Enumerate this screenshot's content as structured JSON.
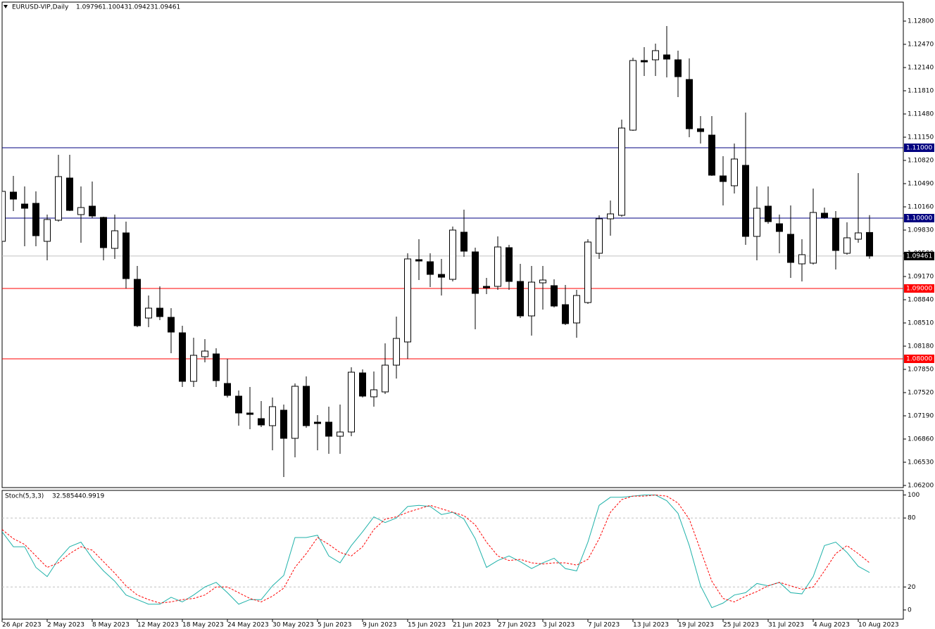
{
  "chart_data": [
    {
      "type": "candlestick",
      "title": "EURUSD-VIP,Daily",
      "categories": [
        "26 Apr 2023",
        null,
        null,
        null,
        "2 May 2023",
        null,
        null,
        null,
        "8 May 2023",
        null,
        null,
        null,
        "12 May 2023",
        null,
        null,
        null,
        "18 May 2023",
        null,
        null,
        null,
        "24 May 2023",
        null,
        null,
        null,
        "30 May 2023",
        null,
        null,
        null,
        "5 Jun 2023",
        null,
        null,
        null,
        "9 Jun 2023",
        null,
        null,
        null,
        "15 Jun 2023",
        null,
        null,
        null,
        "21 Jun 2023",
        null,
        null,
        null,
        "27 Jun 2023",
        null,
        null,
        null,
        "3 Jul 2023",
        null,
        null,
        null,
        "7 Jul 2023",
        null,
        null,
        null,
        "13 Jul 2023",
        null,
        null,
        null,
        "19 Jul 2023",
        null,
        null,
        null,
        "25 Jul 2023",
        null,
        null,
        null,
        "31 Jul 2023",
        null,
        null,
        null,
        "4 Aug 2023",
        null,
        null,
        null,
        "10 Aug 2023",
        null
      ],
      "open": [
        1.0967,
        1.1037,
        1.102,
        1.1021,
        1.0967,
        1.0997,
        1.1057,
        1.1005,
        1.1017,
        1.1001,
        1.0957,
        1.0979,
        1.0913,
        1.0858,
        1.0872,
        1.0859,
        1.0837,
        1.0768,
        1.0803,
        1.0807,
        1.0765,
        1.0747,
        1.0723,
        1.0715,
        1.0705,
        1.0727,
        1.0687,
        1.0761,
        1.071,
        1.071,
        1.069,
        1.0696,
        1.078,
        1.0746,
        1.0753,
        1.0791,
        1.0824,
        1.0941,
        1.0938,
        1.092,
        1.0913,
        1.098,
        1.0952,
        1.0903,
        1.0903,
        1.0958,
        1.091,
        1.0861,
        1.0908,
        1.0904,
        1.0877,
        1.0851,
        1.088,
        1.095,
        1.0999,
        1.1004,
        1.1125,
        1.1224,
        1.1225,
        1.1232,
        1.1225,
        1.1197,
        1.1127,
        1.1118,
        1.106,
        1.1046,
        1.1075,
        1.0974,
        1.1017,
        1.0992,
        1.0977,
        1.0935,
        1.0936,
        1.1007,
        1.1,
        1.095,
        1.097,
        1.09796
      ],
      "high": [
        1.1093,
        1.106,
        1.1045,
        1.1038,
        1.1005,
        1.109,
        1.109,
        1.1045,
        1.1052,
        1.1002,
        1.1005,
        1.0995,
        1.0932,
        1.089,
        1.0903,
        1.0872,
        1.0847,
        1.083,
        1.0828,
        1.0815,
        1.08,
        1.0755,
        1.076,
        1.074,
        1.0745,
        1.0735,
        1.0765,
        1.0775,
        1.072,
        1.0732,
        1.0735,
        1.0788,
        1.0785,
        1.0782,
        1.0822,
        1.086,
        1.095,
        1.097,
        1.095,
        1.0942,
        1.0988,
        1.1012,
        1.0958,
        1.0915,
        1.0974,
        1.0962,
        1.0935,
        1.0932,
        1.0932,
        1.0913,
        1.0905,
        1.0898,
        1.097,
        1.1004,
        1.1025,
        1.114,
        1.1228,
        1.1243,
        1.1248,
        1.1273,
        1.1238,
        1.1227,
        1.1145,
        1.1145,
        1.1088,
        1.1106,
        1.115,
        1.1045,
        1.1045,
        1.1005,
        1.1018,
        1.097,
        1.1042,
        1.1015,
        1.101,
        1.0994,
        1.1064,
        1.10043
      ],
      "low": [
        1.096,
        1.101,
        1.096,
        1.096,
        1.094,
        1.0995,
        1.101,
        1.0965,
        1.1,
        1.094,
        1.0942,
        1.09,
        1.0845,
        1.0845,
        1.0855,
        1.0808,
        1.076,
        1.076,
        1.0795,
        1.076,
        1.0745,
        1.0705,
        1.07,
        1.0703,
        1.067,
        1.0632,
        1.066,
        1.0702,
        1.067,
        1.0665,
        1.0665,
        1.069,
        1.0745,
        1.0732,
        1.075,
        1.0772,
        1.08,
        1.0912,
        1.0902,
        1.089,
        1.091,
        1.0945,
        1.0842,
        1.0892,
        1.0898,
        1.0898,
        1.0858,
        1.0833,
        1.087,
        1.0873,
        1.0848,
        1.083,
        1.0878,
        1.0942,
        1.0975,
        1.1002,
        1.1124,
        1.1202,
        1.1202,
        1.12,
        1.1172,
        1.1115,
        1.1106,
        1.106,
        1.1018,
        1.1035,
        1.0962,
        1.094,
        1.0992,
        1.095,
        1.0915,
        1.091,
        1.0934,
        1.0999,
        1.0927,
        1.0948,
        1.0965,
        1.09423
      ],
      "close": [
        1.1038,
        1.1027,
        1.1014,
        1.0975,
        1.0998,
        1.1059,
        1.1011,
        1.1015,
        1.1003,
        1.0958,
        1.0982,
        1.0914,
        1.0847,
        1.0872,
        1.086,
        1.0838,
        1.0768,
        1.0805,
        1.0811,
        1.0769,
        1.0748,
        1.0723,
        1.0721,
        1.0706,
        1.0732,
        1.0687,
        1.0761,
        1.0705,
        1.0708,
        1.069,
        1.0696,
        1.0781,
        1.0747,
        1.0756,
        1.0791,
        1.0829,
        1.0942,
        1.0939,
        1.092,
        1.0916,
        1.0983,
        1.0953,
        1.0893,
        1.0901,
        1.0959,
        1.091,
        1.0861,
        1.0909,
        1.0912,
        1.0875,
        1.085,
        1.089,
        1.0966,
        1.0999,
        1.1006,
        1.1128,
        1.1224,
        1.1222,
        1.1238,
        1.1226,
        1.1201,
        1.1127,
        1.1123,
        1.1061,
        1.1052,
        1.1084,
        1.0974,
        1.1014,
        1.0995,
        1.0981,
        1.0937,
        1.0948,
        1.1008,
        1.1001,
        1.0954,
        1.0972,
        1.0979,
        1.09461
      ],
      "up_color": "#ffffff",
      "down_color": "#000000",
      "ylim": [
        1.0617,
        1.1307
      ],
      "yticks": [
        {
          "value": 1.128,
          "label": "1.12800"
        },
        {
          "value": 1.1247,
          "label": "1.12470"
        },
        {
          "value": 1.1214,
          "label": "1.12140"
        },
        {
          "value": 1.1181,
          "label": "1.11810"
        },
        {
          "value": 1.1148,
          "label": "1.11480"
        },
        {
          "value": 1.1115,
          "label": "1.11150"
        },
        {
          "value": 1.1082,
          "label": "1.10820"
        },
        {
          "value": 1.1049,
          "label": "1.10490"
        },
        {
          "value": 1.1016,
          "label": "1.10160"
        },
        {
          "value": 1.0983,
          "label": "1.09830"
        },
        {
          "value": 1.095,
          "label": "1.09500"
        },
        {
          "value": 1.0917,
          "label": "1.09170"
        },
        {
          "value": 1.0884,
          "label": "1.08840"
        },
        {
          "value": 1.0851,
          "label": "1.08510"
        },
        {
          "value": 1.0818,
          "label": "1.08180"
        },
        {
          "value": 1.0785,
          "label": "1.07850"
        },
        {
          "value": 1.0752,
          "label": "1.07520"
        },
        {
          "value": 1.0719,
          "label": "1.07190"
        },
        {
          "value": 1.0686,
          "label": "1.06860"
        },
        {
          "value": 1.0653,
          "label": "1.06530"
        },
        {
          "value": 1.062,
          "label": "1.06200"
        }
      ],
      "levels": [
        {
          "value": 1.11,
          "label": "1.11000",
          "color": "#000080"
        },
        {
          "value": 1.1,
          "label": "1.10000",
          "color": "#000080"
        },
        {
          "value": 1.09,
          "label": "1.09000",
          "color": "#ff0000"
        },
        {
          "value": 1.08,
          "label": "1.08000",
          "color": "#ff0000"
        }
      ],
      "price_line_color": "#c0c0c0"
    },
    {
      "type": "line",
      "title": "Stoch(5,3,3)",
      "series": [
        {
          "color": "#20b2aa",
          "dashed": false,
          "values": [
            68,
            55,
            55,
            37,
            29,
            44,
            55,
            59,
            45,
            34,
            25,
            13,
            9,
            5,
            5,
            11,
            7,
            13,
            20,
            24,
            15,
            5,
            9,
            9,
            21,
            30,
            63,
            63,
            65,
            47,
            41,
            56,
            68,
            81,
            76,
            80,
            90,
            91,
            90,
            83,
            85,
            79,
            62,
            37,
            43,
            47,
            42,
            36,
            41,
            45,
            36,
            34,
            59,
            91,
            98,
            98,
            99,
            100,
            100,
            95,
            84,
            56,
            21,
            2,
            6,
            13,
            15,
            23,
            21,
            24,
            15,
            14,
            29,
            56,
            59,
            50,
            38,
            32.5854
          ]
        },
        {
          "color": "#ff0000",
          "dashed": true,
          "values": [
            70,
            62,
            57,
            47,
            37,
            41,
            49,
            55,
            52,
            42,
            32,
            21,
            13,
            9,
            6,
            7,
            9,
            10,
            13,
            20,
            20,
            15,
            10,
            7,
            12,
            19,
            37,
            49,
            63,
            57,
            50,
            47,
            55,
            70,
            79,
            81,
            85,
            88,
            91,
            88,
            85,
            82,
            74,
            59,
            47,
            43,
            44,
            41,
            40,
            41,
            41,
            39,
            44,
            62,
            85,
            96,
            99,
            99,
            100,
            99,
            93,
            79,
            52,
            25,
            10,
            7,
            12,
            16,
            21,
            24,
            21,
            18,
            20,
            34,
            49,
            56,
            49,
            40.9919
          ]
        }
      ],
      "ylim": [
        -8,
        104
      ],
      "yticks": [
        100,
        80,
        20,
        0
      ],
      "levels": [
        80,
        20
      ]
    }
  ]
}
